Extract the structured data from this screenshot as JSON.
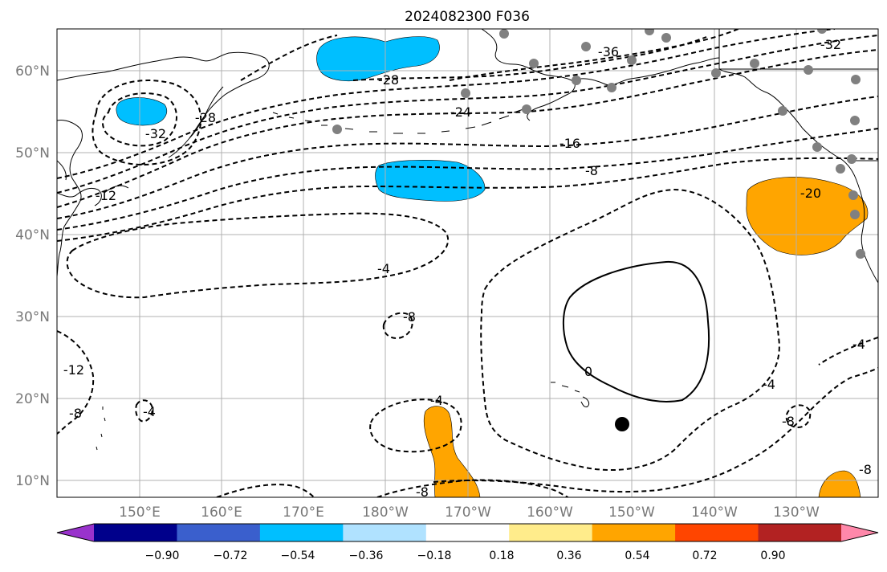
{
  "title": "2024082300 F036",
  "lat_labels": [
    "60°N",
    "50°N",
    "40°N",
    "30°N",
    "20°N",
    "10°N"
  ],
  "lon_labels": [
    "150°E",
    "160°E",
    "170°E",
    "180°W",
    "170°W",
    "160°W",
    "150°W",
    "140°W",
    "130°W"
  ],
  "contour_labels": [
    "-36",
    "-32",
    "-28",
    "-24",
    "-16",
    "-8",
    "-32",
    "-28",
    "-12",
    "-4",
    "-8",
    "-12",
    "-8",
    "-4",
    "-4",
    "0",
    "-4",
    "-8",
    "-4",
    "-8",
    "-20",
    "-8",
    "-8"
  ],
  "colorbar": {
    "ticks": [
      "−0.90",
      "−0.72",
      "−0.54",
      "−0.36",
      "−0.18",
      "0.18",
      "0.36",
      "0.54",
      "0.72",
      "0.90"
    ],
    "colors": [
      "#9932cc",
      "#00008b",
      "#3a5fcd",
      "#00bfff",
      "#b0e2ff",
      "#ffffff",
      "#ffec8b",
      "#ffa500",
      "#ff4500",
      "#b22222",
      "#ff88aa"
    ]
  },
  "shading_colors": {
    "negative": "#00bfff",
    "positive": "#ffa500"
  },
  "marker": "black-dot"
}
